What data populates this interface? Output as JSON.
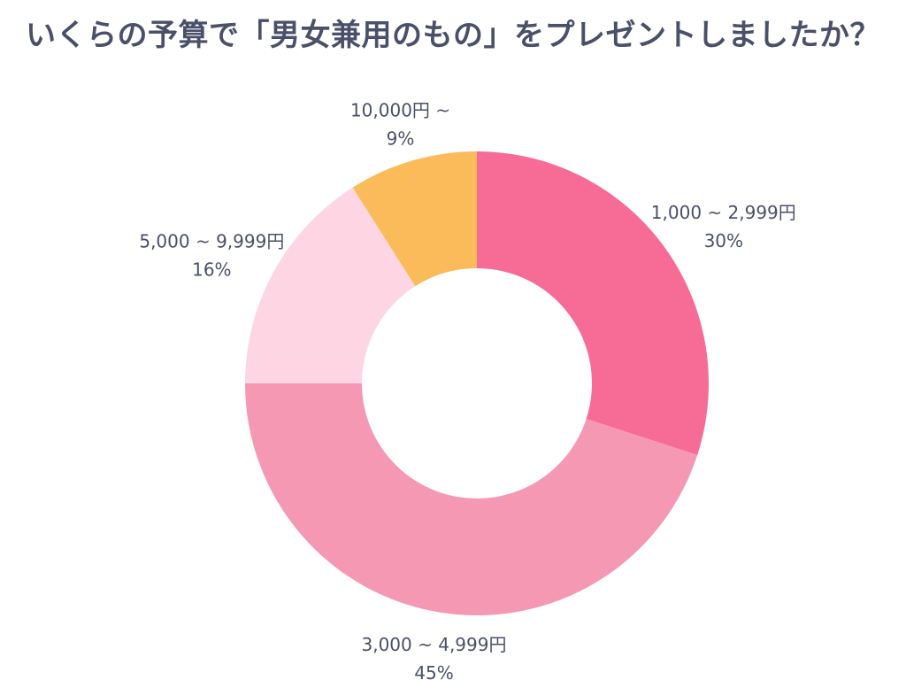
{
  "chart_data": {
    "type": "pie",
    "variant": "donut",
    "title": "いくらの予算で「男女兼用のもの」をプレゼントしましたか？",
    "slices": [
      {
        "label": "1,000 ~ 2,999円",
        "value": 30,
        "value_label": "30%",
        "color": "#f76c97"
      },
      {
        "label": "3,000 ~ 4,999円",
        "value": 45,
        "value_label": "45%",
        "color": "#f598b4"
      },
      {
        "label": "5,000 ~ 9,999円",
        "value": 16,
        "value_label": "16%",
        "color": "#fdd5e3"
      },
      {
        "label": "10,000円 ~",
        "value": 9,
        "value_label": "9%",
        "color": "#fbbb5a"
      }
    ],
    "start": "12 o'clock",
    "direction": "clockwise",
    "legend": "none"
  }
}
